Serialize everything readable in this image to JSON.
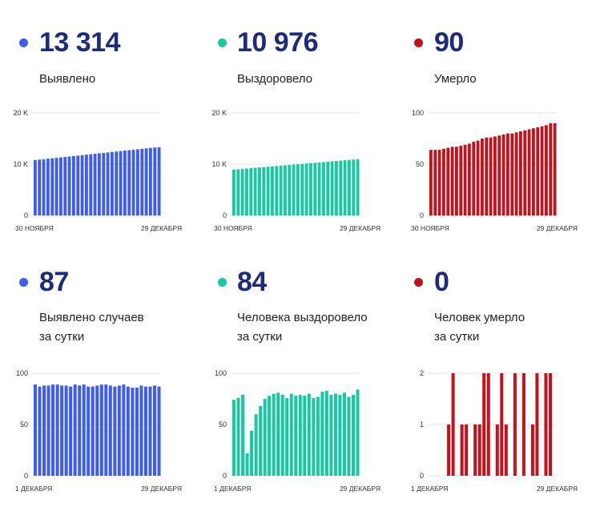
{
  "colors": {
    "blue": "#3d5cf2",
    "green": "#16c9a0",
    "red": "#c4121c",
    "number": "#1c2b7a"
  },
  "stats": [
    {
      "value": "13 314",
      "label_line1": "Выявлено",
      "label_line2": "",
      "color": "#3d5cf2"
    },
    {
      "value": "10 976",
      "label_line1": "Выздоровело",
      "label_line2": "",
      "color": "#16c9a0"
    },
    {
      "value": "90",
      "label_line1": "Умерло",
      "label_line2": "",
      "color": "#c4121c"
    },
    {
      "value": "87",
      "label_line1": "Выявлено случаев",
      "label_line2": "за сутки",
      "color": "#3d5cf2"
    },
    {
      "value": "84",
      "label_line1": "Человека выздоровело",
      "label_line2": "за сутки",
      "color": "#16c9a0"
    },
    {
      "value": "0",
      "label_line1": "Человек умерло",
      "label_line2": "за сутки",
      "color": "#c4121c"
    }
  ],
  "chart_data": [
    {
      "type": "bar",
      "color": "#3d5cf2",
      "ylim": [
        0,
        20000
      ],
      "yticks": [
        "0",
        "10 K",
        "20 K"
      ],
      "xlabel_start": "30 НОЯБРЯ",
      "xlabel_end": "29 ДЕКАБРЯ",
      "values": [
        10800,
        10888,
        10976,
        11064,
        11152,
        11240,
        11328,
        11416,
        11504,
        11592,
        11680,
        11768,
        11856,
        11944,
        12032,
        12120,
        12208,
        12296,
        12384,
        12472,
        12560,
        12648,
        12736,
        12824,
        12912,
        13000,
        13088,
        13176,
        13264,
        13314
      ]
    },
    {
      "type": "bar",
      "color": "#16c9a0",
      "ylim": [
        0,
        20000
      ],
      "yticks": [
        "0",
        "10 K",
        "20 K"
      ],
      "xlabel_start": "30 НОЯБРЯ",
      "xlabel_end": "29 ДЕКАБРЯ",
      "values": [
        8950,
        9020,
        9090,
        9160,
        9230,
        9300,
        9370,
        9440,
        9510,
        9580,
        9650,
        9720,
        9790,
        9860,
        9930,
        10000,
        10070,
        10140,
        10210,
        10280,
        10350,
        10420,
        10490,
        10560,
        10630,
        10700,
        10770,
        10840,
        10910,
        10976
      ]
    },
    {
      "type": "bar",
      "color": "#c4121c",
      "ylim": [
        0,
        100
      ],
      "yticks": [
        "0",
        "50",
        "100"
      ],
      "xlabel_start": "30 НОЯБРЯ",
      "xlabel_end": "29 ДЕКАБРЯ",
      "values": [
        64,
        64,
        64,
        65,
        66,
        67,
        67,
        68,
        69,
        70,
        72,
        73,
        75,
        76,
        76,
        77,
        78,
        79,
        80,
        80,
        81,
        82,
        83,
        84,
        85,
        86,
        87,
        88,
        90,
        90
      ]
    },
    {
      "type": "bar",
      "color": "#3d5cf2",
      "ylim": [
        0,
        100
      ],
      "yticks": [
        "0",
        "50",
        "100"
      ],
      "xlabel_start": "1 ДЕКАБРЯ",
      "xlabel_end": "29 ДЕКАБРЯ",
      "values": [
        89,
        87,
        88,
        88,
        89,
        89,
        88,
        88,
        87,
        89,
        88,
        89,
        87,
        87,
        88,
        89,
        89,
        88,
        87,
        88,
        89,
        87,
        86,
        86,
        88,
        87,
        87,
        88,
        87
      ]
    },
    {
      "type": "bar",
      "color": "#16c9a0",
      "ylim": [
        0,
        100
      ],
      "yticks": [
        "0",
        "50",
        "100"
      ],
      "xlabel_start": "1 ДЕКАБРЯ",
      "xlabel_end": "29 ДЕКАБРЯ",
      "values": [
        74,
        76,
        79,
        22,
        44,
        60,
        68,
        75,
        78,
        80,
        81,
        79,
        76,
        80,
        78,
        79,
        78,
        80,
        76,
        77,
        82,
        83,
        79,
        80,
        79,
        81,
        77,
        79,
        84
      ]
    },
    {
      "type": "bar",
      "color": "#c4121c",
      "ylim": [
        0,
        2
      ],
      "yticks": [
        "0",
        "1",
        "2"
      ],
      "xlabel_start": "1 ДЕКАБРЯ",
      "xlabel_end": "29 ДЕКАБРЯ",
      "values": [
        0,
        0,
        0,
        0,
        1,
        2,
        0,
        1,
        1,
        0,
        1,
        1,
        2,
        2,
        0,
        1,
        2,
        1,
        0,
        2,
        0,
        2,
        0,
        1,
        2,
        0,
        2,
        2,
        0
      ]
    }
  ]
}
